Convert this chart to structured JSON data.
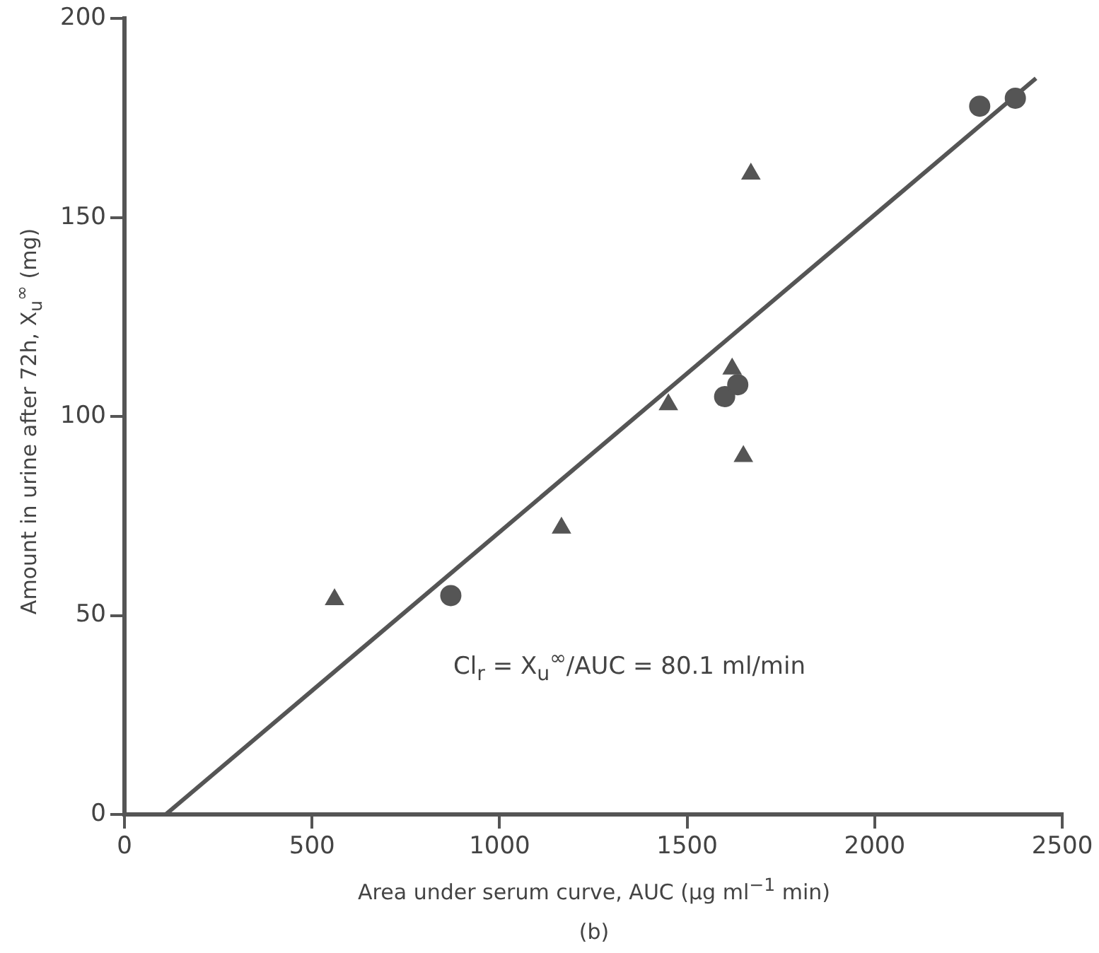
{
  "chart_data": {
    "type": "scatter",
    "xlabel": "Area under serum curve, AUC (µg ml$^{−1}$ min)",
    "ylabel": "Amount in urine after 72h, X$_{u}$$^{∞}$ (mg)",
    "annotations": [
      "Cl$_{r}$ = X$_{u}$$^{∞}$/AUC = 80.1 ml/min",
      "(b)"
    ],
    "xlim": [
      0,
      2500
    ],
    "xticks": [
      0,
      500,
      1000,
      1500,
      2000,
      2500
    ],
    "ylim": [
      0,
      200
    ],
    "yticks": [
      0,
      50,
      100,
      150,
      200
    ],
    "grid": false,
    "legend": false,
    "series": [
      {
        "type": "scatter",
        "marker": "circle",
        "color": "#555555",
        "x": [
          870,
          1600,
          1635,
          2280,
          2375
        ],
        "values": [
          55,
          105,
          108,
          178,
          180
        ]
      },
      {
        "type": "scatter",
        "marker": "triangle",
        "color": "#555555",
        "x": [
          560,
          1165,
          1450,
          1620,
          1650,
          1670
        ],
        "values": [
          54,
          72,
          103,
          112,
          90,
          161
        ]
      },
      {
        "type": "line",
        "marker": "none",
        "color": "#555555",
        "x": [
          110,
          2430
        ],
        "values": [
          0,
          185
        ]
      }
    ]
  }
}
